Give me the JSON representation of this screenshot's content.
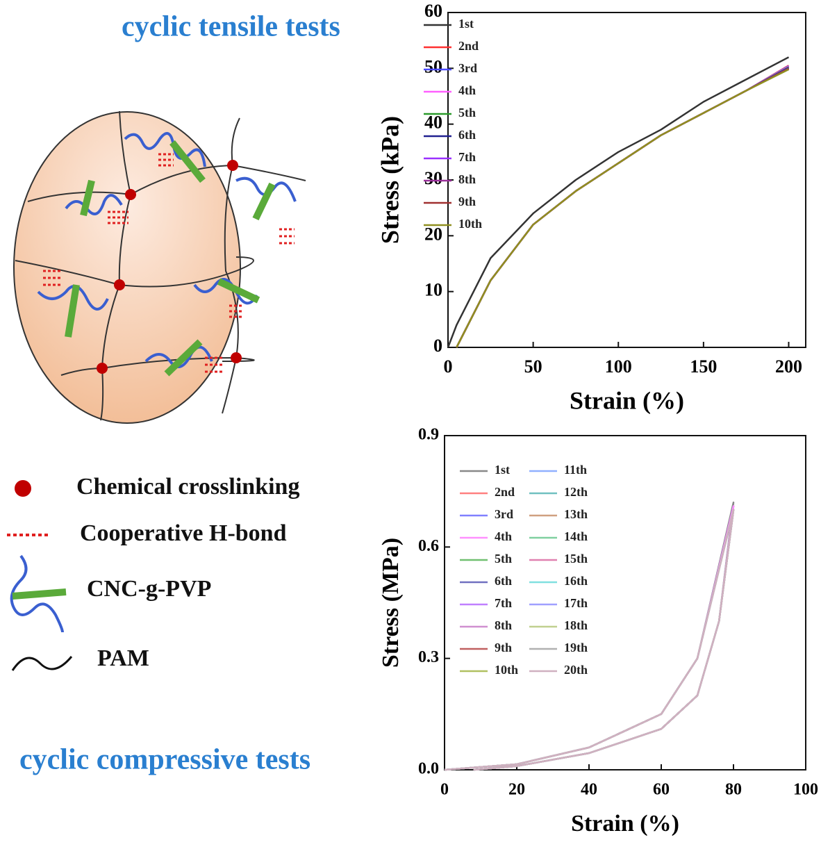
{
  "diagram": {
    "titles": [
      "cyclic tensile tests",
      "cyclic compressive tests"
    ],
    "legend": [
      "Chemical crosslinking",
      "Cooperative H-bond",
      "CNC-g-PVP",
      "PAM"
    ]
  },
  "chart_data": [
    {
      "type": "line",
      "xlabel": "Strain (%)",
      "ylabel": "Stress (kPa)",
      "x": [
        0,
        5,
        25,
        50,
        75,
        100,
        125,
        150,
        175,
        200
      ],
      "xlim": [
        0,
        210
      ],
      "xticks": [
        0,
        50,
        100,
        150,
        200
      ],
      "ylim": [
        0,
        60
      ],
      "yticks": [
        0,
        10,
        20,
        30,
        40,
        50,
        60
      ],
      "series": [
        {
          "name": "1st",
          "color": "#333333",
          "values": [
            0,
            4,
            16,
            24,
            30,
            35,
            39,
            44,
            48,
            52
          ]
        },
        {
          "name": "2nd",
          "color": "#ff3030",
          "values": [
            null,
            0,
            12,
            22,
            28,
            33,
            38,
            42,
            46,
            50.5
          ]
        },
        {
          "name": "3rd",
          "color": "#4a4aff",
          "values": [
            null,
            0,
            12,
            22,
            28,
            33,
            38,
            42,
            46,
            50.4
          ]
        },
        {
          "name": "4th",
          "color": "#ff60ff",
          "values": [
            null,
            0,
            12,
            22,
            28,
            33,
            38,
            42,
            46,
            50.3
          ]
        },
        {
          "name": "5th",
          "color": "#2a9a2a",
          "values": [
            null,
            0,
            12,
            22,
            28,
            33,
            38,
            42,
            46,
            50.2
          ]
        },
        {
          "name": "6th",
          "color": "#202090",
          "values": [
            null,
            0,
            12,
            22,
            28,
            33,
            38,
            42,
            46,
            50.1
          ]
        },
        {
          "name": "7th",
          "color": "#9a30ff",
          "values": [
            null,
            0,
            12,
            22,
            28,
            33,
            38,
            42,
            46,
            50
          ]
        },
        {
          "name": "8th",
          "color": "#9a309a",
          "values": [
            null,
            0,
            12,
            22,
            28,
            33,
            38,
            42,
            46,
            50
          ]
        },
        {
          "name": "9th",
          "color": "#a03030",
          "values": [
            null,
            0,
            12,
            22,
            28,
            33,
            38,
            42,
            46,
            49.9
          ]
        },
        {
          "name": "10th",
          "color": "#909020",
          "values": [
            null,
            0,
            12,
            22,
            28,
            33,
            38,
            42,
            46,
            49.8
          ]
        }
      ]
    },
    {
      "type": "line",
      "xlabel": "Strain (%)",
      "ylabel": "Stress (MPa)",
      "x": [
        0,
        20,
        40,
        60,
        70,
        80,
        76,
        70,
        60,
        40,
        20,
        8
      ],
      "xlim": [
        0,
        100
      ],
      "xticks": [
        0,
        20,
        40,
        60,
        80,
        100
      ],
      "ylim": [
        0,
        0.9
      ],
      "yticks": [
        {
          "value": 0,
          "label": "0.0"
        },
        0.3,
        0.6,
        0.9
      ],
      "series": [
        {
          "name": "1st",
          "color": "#888888",
          "values": [
            0,
            0.015,
            0.06,
            0.15,
            0.3,
            0.72,
            0.4,
            0.2,
            0.11,
            0.045,
            0.01,
            0
          ]
        },
        {
          "name": "2nd",
          "color": "#ff8080",
          "values": [
            0,
            0.015,
            0.06,
            0.15,
            0.3,
            0.71,
            0.4,
            0.2,
            0.11,
            0.045,
            0.01,
            0
          ]
        },
        {
          "name": "3rd",
          "color": "#8080ff",
          "values": [
            0,
            0.015,
            0.06,
            0.15,
            0.3,
            0.71,
            0.4,
            0.2,
            0.11,
            0.045,
            0.01,
            0
          ]
        },
        {
          "name": "4th",
          "color": "#ff90ff",
          "values": [
            0,
            0.015,
            0.06,
            0.15,
            0.3,
            0.71,
            0.4,
            0.2,
            0.11,
            0.045,
            0.01,
            0
          ]
        },
        {
          "name": "5th",
          "color": "#70c070",
          "values": [
            0,
            0.015,
            0.06,
            0.15,
            0.3,
            0.7,
            0.4,
            0.2,
            0.11,
            0.045,
            0.01,
            0
          ]
        },
        {
          "name": "6th",
          "color": "#7070c0",
          "values": [
            0,
            0.015,
            0.06,
            0.15,
            0.3,
            0.7,
            0.4,
            0.2,
            0.11,
            0.045,
            0.01,
            0
          ]
        },
        {
          "name": "7th",
          "color": "#c080ff",
          "values": [
            0,
            0.015,
            0.06,
            0.15,
            0.3,
            0.7,
            0.4,
            0.2,
            0.11,
            0.045,
            0.01,
            0
          ]
        },
        {
          "name": "8th",
          "color": "#d090d0",
          "values": [
            0,
            0.015,
            0.06,
            0.15,
            0.3,
            0.7,
            0.4,
            0.2,
            0.11,
            0.045,
            0.01,
            0
          ]
        },
        {
          "name": "9th",
          "color": "#c06060",
          "values": [
            0,
            0.015,
            0.06,
            0.15,
            0.3,
            0.7,
            0.4,
            0.2,
            0.11,
            0.045,
            0.01,
            0
          ]
        },
        {
          "name": "10th",
          "color": "#b0c060",
          "values": [
            0,
            0.015,
            0.06,
            0.15,
            0.3,
            0.7,
            0.4,
            0.2,
            0.11,
            0.045,
            0.01,
            0
          ]
        },
        {
          "name": "11th",
          "color": "#90b0ff",
          "values": [
            0,
            0.015,
            0.06,
            0.15,
            0.3,
            0.7,
            0.4,
            0.2,
            0.11,
            0.045,
            0.01,
            0
          ]
        },
        {
          "name": "12th",
          "color": "#70c0c0",
          "values": [
            0,
            0.015,
            0.06,
            0.15,
            0.3,
            0.7,
            0.4,
            0.2,
            0.11,
            0.045,
            0.01,
            0
          ]
        },
        {
          "name": "13th",
          "color": "#d0a080",
          "values": [
            0,
            0.015,
            0.06,
            0.15,
            0.3,
            0.7,
            0.4,
            0.2,
            0.11,
            0.045,
            0.01,
            0
          ]
        },
        {
          "name": "14th",
          "color": "#80d0a0",
          "values": [
            0,
            0.015,
            0.06,
            0.15,
            0.3,
            0.7,
            0.4,
            0.2,
            0.11,
            0.045,
            0.01,
            0
          ]
        },
        {
          "name": "15th",
          "color": "#e080b0",
          "values": [
            0,
            0.015,
            0.06,
            0.15,
            0.3,
            0.7,
            0.4,
            0.2,
            0.11,
            0.045,
            0.01,
            0
          ]
        },
        {
          "name": "16th",
          "color": "#80e0e0",
          "values": [
            0,
            0.015,
            0.06,
            0.15,
            0.3,
            0.7,
            0.4,
            0.2,
            0.11,
            0.045,
            0.01,
            0
          ]
        },
        {
          "name": "17th",
          "color": "#a0a0ff",
          "values": [
            0,
            0.015,
            0.06,
            0.15,
            0.3,
            0.7,
            0.4,
            0.2,
            0.11,
            0.045,
            0.01,
            0
          ]
        },
        {
          "name": "18th",
          "color": "#c0d090",
          "values": [
            0,
            0.015,
            0.06,
            0.15,
            0.3,
            0.7,
            0.4,
            0.2,
            0.11,
            0.045,
            0.01,
            0
          ]
        },
        {
          "name": "19th",
          "color": "#b0b0b0",
          "values": [
            0,
            0.015,
            0.06,
            0.15,
            0.3,
            0.7,
            0.4,
            0.2,
            0.11,
            0.045,
            0.01,
            0
          ]
        },
        {
          "name": "20th",
          "color": "#d0b0c0",
          "values": [
            0,
            0.015,
            0.06,
            0.15,
            0.3,
            0.7,
            0.4,
            0.2,
            0.11,
            0.045,
            0.01,
            0
          ]
        }
      ]
    }
  ]
}
